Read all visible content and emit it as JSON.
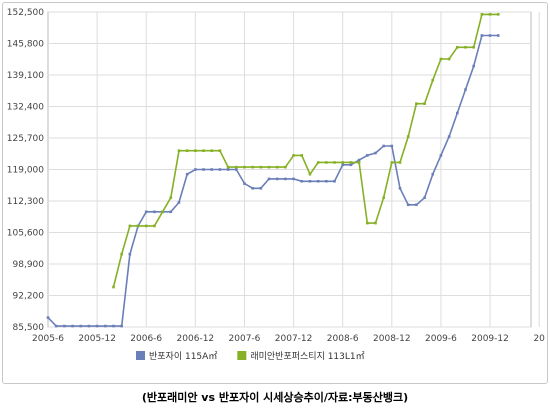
{
  "chart_data": {
    "type": "line",
    "title": "",
    "xlabel": "",
    "ylabel": "",
    "x_start": "2005-6",
    "ylim": [
      85500,
      152500
    ],
    "y_ticks": [
      "85,500",
      "92,200",
      "98,900",
      "105,600",
      "112,300",
      "119,000",
      "125,700",
      "132,400",
      "139,100",
      "145,800",
      "152,500"
    ],
    "x_ticks": [
      "2005-6",
      "2005-12",
      "2006-6",
      "2006-12",
      "2007-6",
      "2007-12",
      "2008-6",
      "2008-12",
      "2009-6",
      "2009-12",
      "20"
    ],
    "grid": true,
    "legend_position": "bottom",
    "series": [
      {
        "name": "반포자이 115A㎡",
        "color": "#6a7fb8",
        "x_months": [
          0,
          1,
          2,
          3,
          4,
          5,
          6,
          7,
          8,
          9,
          10,
          11,
          12,
          13,
          14,
          15,
          16,
          17,
          18,
          19,
          20,
          21,
          22,
          23,
          24,
          25,
          26,
          27,
          28,
          29,
          30,
          31,
          32,
          33,
          34,
          35,
          36,
          37,
          38,
          39,
          40,
          41,
          42,
          43,
          44,
          45,
          46,
          47,
          48,
          49,
          50,
          51,
          52,
          53,
          54,
          55
        ],
        "values": [
          87500,
          85700,
          85700,
          85700,
          85700,
          85700,
          85700,
          85700,
          85700,
          85700,
          101000,
          107000,
          110000,
          110000,
          110000,
          110000,
          112000,
          118000,
          119000,
          119000,
          119000,
          119000,
          119000,
          119000,
          116000,
          115000,
          115000,
          117000,
          117000,
          117000,
          117000,
          116500,
          116500,
          116500,
          116500,
          116500,
          120000,
          120000,
          121000,
          122000,
          122500,
          124000,
          124000,
          115000,
          111500,
          111500,
          113000,
          118000,
          122000,
          126000,
          131000,
          136000,
          141000,
          147500,
          147500,
          147500
        ]
      },
      {
        "name": "래미안반포퍼스티지 113L1㎡",
        "color": "#86b025",
        "x_months": [
          8,
          9,
          10,
          11,
          12,
          13,
          14,
          15,
          16,
          17,
          18,
          19,
          20,
          21,
          22,
          23,
          24,
          25,
          26,
          27,
          28,
          29,
          30,
          31,
          32,
          33,
          34,
          35,
          36,
          37,
          38,
          39,
          40,
          41,
          42,
          43,
          44,
          45,
          46,
          47,
          48,
          49,
          50,
          51,
          52,
          53,
          54,
          55
        ],
        "values": [
          94000,
          101000,
          107000,
          107000,
          107000,
          107000,
          110000,
          113000,
          123000,
          123000,
          123000,
          123000,
          123000,
          123000,
          119500,
          119500,
          119500,
          119500,
          119500,
          119500,
          119500,
          119500,
          122000,
          122000,
          118000,
          120500,
          120500,
          120500,
          120500,
          120500,
          120500,
          107600,
          107600,
          113000,
          120500,
          120500,
          126000,
          133000,
          133000,
          138000,
          142500,
          142500,
          145000,
          145000,
          145000,
          152000,
          152000,
          152000
        ]
      }
    ]
  },
  "caption": "(반포래미안 vs 반포자이 시세상승추이/자료:부동산뱅크)"
}
